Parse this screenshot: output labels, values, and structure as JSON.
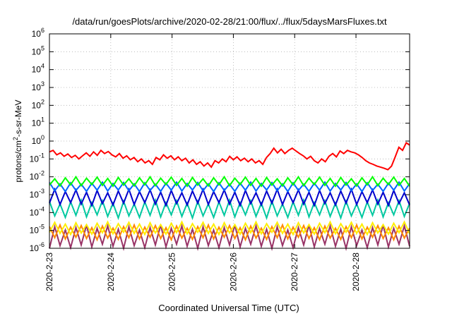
{
  "chart_data": {
    "type": "line",
    "title": "/data/run/goesPlots/archive/2020-02-28/21:00/flux/../flux/5daysMarsFluxes.txt",
    "xlabel": "Coordinated Universal Time (UTC)",
    "ylabel_parts": {
      "pre": "protons/cm",
      "sup": "2",
      "post": "-s-sr-MeV"
    },
    "y_scale": "log",
    "ylim": [
      1e-06,
      1000000.0
    ],
    "y_ticks": [
      {
        "base": "10",
        "exp": "-6",
        "value": 1e-06
      },
      {
        "base": "10",
        "exp": "-5",
        "value": 1e-05
      },
      {
        "base": "10",
        "exp": "-4",
        "value": 0.0001
      },
      {
        "base": "10",
        "exp": "-3",
        "value": 0.001
      },
      {
        "base": "10",
        "exp": "-2",
        "value": 0.01
      },
      {
        "base": "10",
        "exp": "-1",
        "value": 0.1
      },
      {
        "base": "10",
        "exp": "0",
        "value": 1.0
      },
      {
        "base": "10",
        "exp": "1",
        "value": 10.0
      },
      {
        "base": "10",
        "exp": "2",
        "value": 100.0
      },
      {
        "base": "10",
        "exp": "3",
        "value": 1000.0
      },
      {
        "base": "10",
        "exp": "4",
        "value": 10000.0
      },
      {
        "base": "10",
        "exp": "5",
        "value": 100000.0
      },
      {
        "base": "10",
        "exp": "6",
        "value": 1000000.0
      }
    ],
    "x_ticks": [
      "2020-2-23",
      "2020-2-24",
      "2020-2-25",
      "2020-2-26",
      "2020-2-27",
      "2020-2-28"
    ],
    "xlim": [
      "2020-02-23T00:00",
      "2020-02-28T21:00"
    ],
    "grid": true,
    "legend": "none",
    "series": [
      {
        "color": "#ff0000",
        "x_days": [
          0,
          0.06,
          0.12,
          0.18,
          0.24,
          0.3,
          0.36,
          0.42,
          0.48,
          0.54,
          0.6,
          0.66,
          0.72,
          0.78,
          0.84,
          0.9,
          0.96,
          1.02,
          1.08,
          1.14,
          1.2,
          1.26,
          1.32,
          1.38,
          1.44,
          1.5,
          1.56,
          1.62,
          1.68,
          1.74,
          1.8,
          1.86,
          1.92,
          1.98,
          2.04,
          2.1,
          2.16,
          2.22,
          2.28,
          2.34,
          2.4,
          2.46,
          2.52,
          2.58,
          2.64,
          2.7,
          2.76,
          2.82,
          2.88,
          2.94,
          3,
          3.06,
          3.12,
          3.18,
          3.24,
          3.3,
          3.36,
          3.42,
          3.48,
          3.54,
          3.6,
          3.66,
          3.72,
          3.78,
          3.84,
          3.9,
          3.96,
          4.02,
          4.08,
          4.14,
          4.2,
          4.26,
          4.32,
          4.38,
          4.44,
          4.5,
          4.56,
          4.62,
          4.68,
          4.74,
          4.8,
          4.86,
          4.92,
          4.98,
          5.04,
          5.1,
          5.16,
          5.22,
          5.28,
          5.34,
          5.4,
          5.46,
          5.52,
          5.58,
          5.64,
          5.7,
          5.76,
          5.82,
          5.875
        ],
        "values": [
          0.25,
          0.3,
          0.17,
          0.22,
          0.14,
          0.19,
          0.12,
          0.16,
          0.1,
          0.15,
          0.22,
          0.14,
          0.25,
          0.16,
          0.3,
          0.2,
          0.26,
          0.17,
          0.13,
          0.2,
          0.11,
          0.15,
          0.09,
          0.12,
          0.07,
          0.1,
          0.06,
          0.08,
          0.05,
          0.12,
          0.09,
          0.17,
          0.11,
          0.15,
          0.09,
          0.13,
          0.08,
          0.11,
          0.06,
          0.09,
          0.05,
          0.07,
          0.04,
          0.06,
          0.035,
          0.08,
          0.06,
          0.1,
          0.07,
          0.14,
          0.09,
          0.13,
          0.08,
          0.11,
          0.07,
          0.1,
          0.06,
          0.08,
          0.05,
          0.12,
          0.2,
          0.4,
          0.22,
          0.35,
          0.2,
          0.3,
          0.4,
          0.28,
          0.2,
          0.15,
          0.1,
          0.14,
          0.08,
          0.06,
          0.1,
          0.07,
          0.14,
          0.2,
          0.13,
          0.28,
          0.2,
          0.3,
          0.25,
          0.22,
          0.17,
          0.12,
          0.08,
          0.06,
          0.05,
          0.04,
          0.035,
          0.03,
          0.025,
          0.04,
          0.13,
          0.45,
          0.3,
          0.8,
          0.6
        ]
      },
      {
        "color": "#00ff00",
        "values_range": [
          0.003,
          0.01
        ]
      },
      {
        "color": "#0066ff",
        "values_range": [
          0.0015,
          0.005
        ]
      },
      {
        "color": "#0000cc",
        "values_range": [
          0.00025,
          0.002
        ]
      },
      {
        "color": "#00c8a0",
        "values_range": [
          5e-05,
          0.0005
        ]
      },
      {
        "color": "#ffee00",
        "values_range": [
          6e-06,
          3e-05
        ]
      },
      {
        "color": "#ff8800",
        "values_range": [
          3e-06,
          2e-05
        ]
      },
      {
        "color": "#993366",
        "values_range": [
          1e-06,
          2e-05
        ]
      }
    ]
  }
}
